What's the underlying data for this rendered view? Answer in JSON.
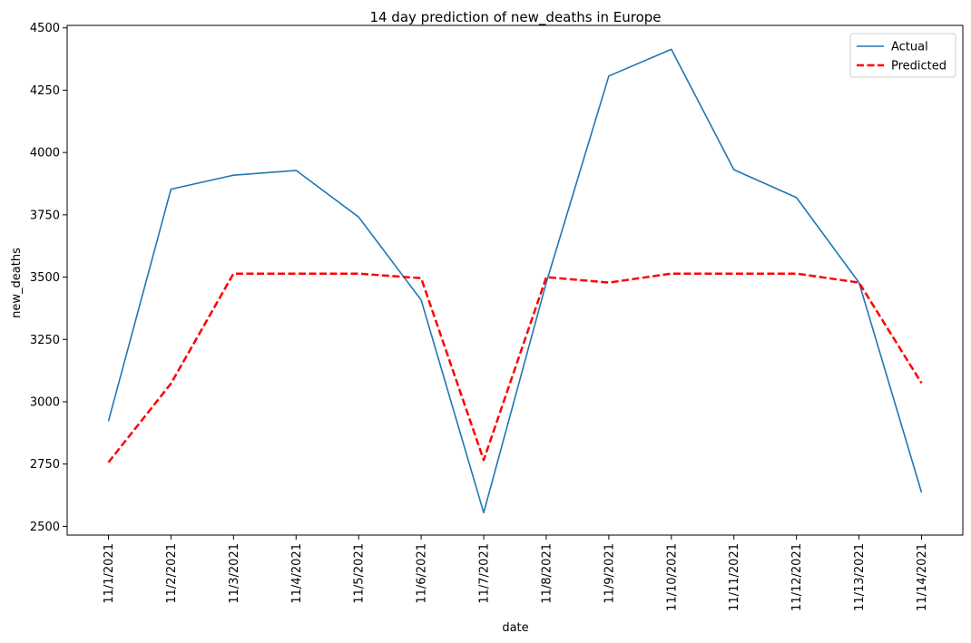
{
  "chart_data": {
    "type": "line",
    "title": "14 day prediction of new_deaths in Europe",
    "xlabel": "date",
    "ylabel": "new_deaths",
    "categories": [
      "11/1/2021",
      "11/2/2021",
      "11/3/2021",
      "11/4/2021",
      "11/5/2021",
      "11/6/2021",
      "11/7/2021",
      "11/8/2021",
      "11/9/2021",
      "11/10/2021",
      "11/11/2021",
      "11/12/2021",
      "11/13/2021",
      "11/14/2021"
    ],
    "ylim": [
      2465,
      4510
    ],
    "yticks": [
      2500,
      2750,
      3000,
      3250,
      3500,
      3750,
      4000,
      4250,
      4500
    ],
    "grid": false,
    "legend_position": "top-right",
    "series": [
      {
        "name": "Actual",
        "color": "#1f77b4",
        "dash": "solid",
        "values": [
          2922,
          3853,
          3909,
          3928,
          3741,
          3408,
          2555,
          3478,
          4307,
          4414,
          3931,
          3819,
          3478,
          2636
        ]
      },
      {
        "name": "Predicted",
        "color": "#ff0000",
        "dash": "dashed",
        "values": [
          2757,
          3073,
          3514,
          3514,
          3514,
          3496,
          2766,
          3500,
          3478,
          3514,
          3514,
          3514,
          3478,
          3075
        ]
      }
    ]
  }
}
